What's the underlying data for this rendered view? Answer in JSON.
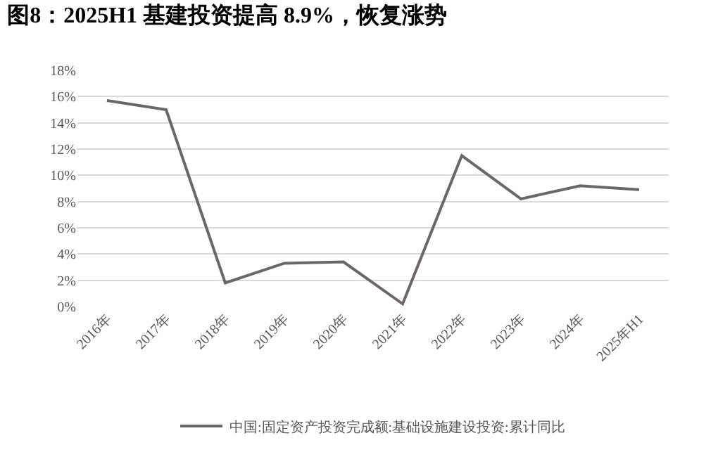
{
  "chart_data": {
    "type": "line",
    "title": "图8：2025H1 基建投资提高 8.9%，恢复涨势",
    "categories": [
      "2016年",
      "2017年",
      "2018年",
      "2019年",
      "2020年",
      "2021年",
      "2022年",
      "2023年",
      "2024年",
      "2025年H1"
    ],
    "series": [
      {
        "name": "中国:固定资产投资完成额:基础设施建设投资:累计同比",
        "color": "#6b6768",
        "values": [
          15.7,
          15.0,
          1.8,
          3.3,
          3.4,
          0.2,
          11.5,
          8.2,
          9.2,
          8.9
        ]
      }
    ],
    "ylim": [
      0,
      18
    ],
    "yticks": [
      {
        "value": 0,
        "label": "0%"
      },
      {
        "value": 2,
        "label": "2%"
      },
      {
        "value": 4,
        "label": "4%"
      },
      {
        "value": 6,
        "label": "6%"
      },
      {
        "value": 8,
        "label": "8%"
      },
      {
        "value": 10,
        "label": "10%"
      },
      {
        "value": 12,
        "label": "12%"
      },
      {
        "value": 14,
        "label": "14%"
      },
      {
        "value": 16,
        "label": "16%"
      },
      {
        "value": 18,
        "label": "18%"
      }
    ],
    "grid": "y",
    "legend": "bottom",
    "marker": "none",
    "line_style": "solid"
  }
}
